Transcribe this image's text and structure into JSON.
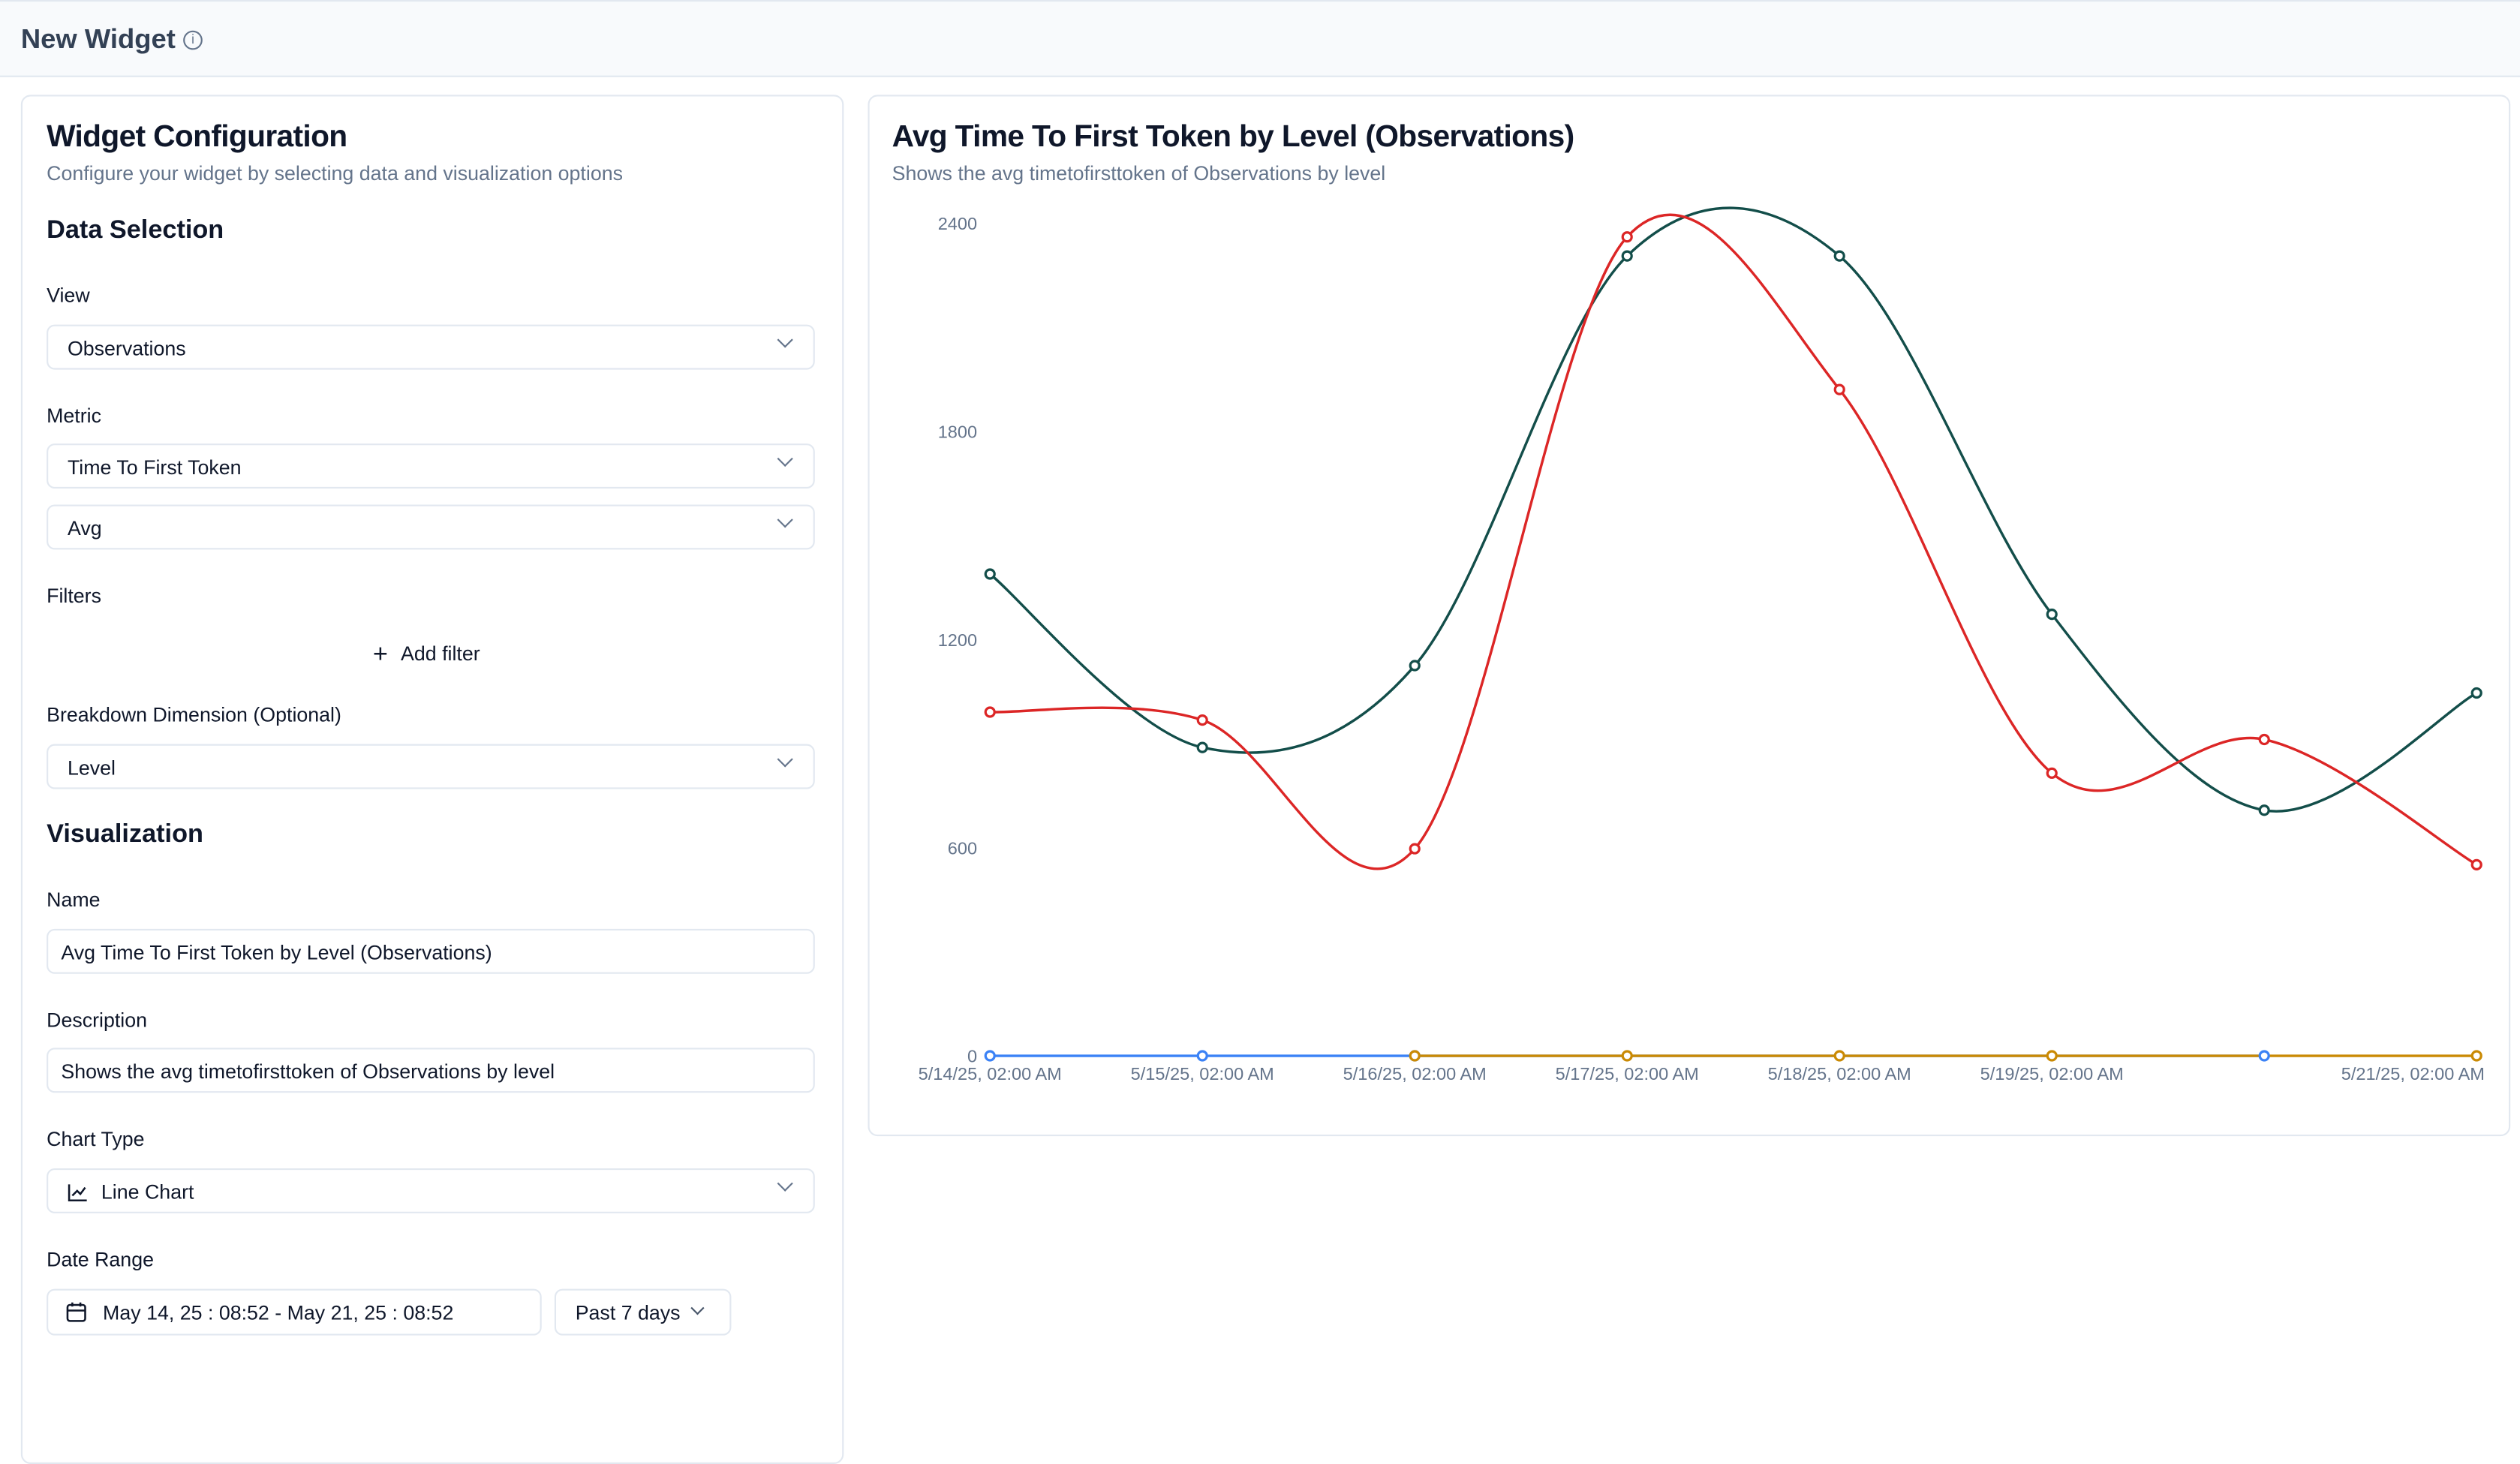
{
  "header": {
    "title": "New Widget",
    "info_icon": "info-icon"
  },
  "config": {
    "title": "Widget Configuration",
    "subtitle": "Configure your widget by selecting data and visualization options",
    "data_selection": "Data Selection",
    "view_label": "View",
    "view_value": "Observations",
    "metric_label": "Metric",
    "metric_value": "Time To First Token",
    "aggregation_value": "Avg",
    "filters_label": "Filters",
    "add_filter": "Add filter",
    "breakdown_label": "Breakdown Dimension (Optional)",
    "breakdown_value": "Level",
    "visualization": "Visualization",
    "name_label": "Name",
    "name_value": "Avg Time To First Token by Level (Observations)",
    "description_label": "Description",
    "description_value": "Shows the avg timetofirsttoken of Observations by level",
    "chart_type_label": "Chart Type",
    "chart_type_value": "Line Chart",
    "date_range_label": "Date Range",
    "date_range_value": "May 14, 25 : 08:52 - May 21, 25 : 08:52",
    "date_preset": "Past 7 days"
  },
  "chart_data": {
    "type": "line",
    "title": "Avg Time To First Token by Level (Observations)",
    "subtitle": "Shows the avg timetofirsttoken of Observations by level",
    "x": [
      "5/14/25, 02:00 AM",
      "5/15/25, 02:00 AM",
      "5/16/25, 02:00 AM",
      "5/17/25, 02:00 AM",
      "5/18/25, 02:00 AM",
      "5/19/25, 02:00 AM",
      "",
      "5/21/25, 02:00 AM"
    ],
    "ylim": [
      0,
      2400
    ],
    "yticks": [
      "0",
      "600",
      "1200",
      "1800",
      "2400"
    ],
    "grid": false,
    "series": [
      {
        "color": "#134e4a",
        "values": [
          1389,
          889,
          1125,
          2306,
          2306,
          1273,
          708,
          1046
        ]
      },
      {
        "color": "#dc2626",
        "values": [
          991,
          968,
          597,
          2361,
          1921,
          815,
          912,
          551
        ]
      },
      {
        "color": "#3b82f6",
        "values": [
          0,
          0,
          0,
          null,
          null,
          null,
          0,
          null
        ]
      },
      {
        "color": "#ca8a04",
        "values": [
          null,
          null,
          0,
          0,
          0,
          0,
          null,
          0
        ]
      }
    ]
  }
}
